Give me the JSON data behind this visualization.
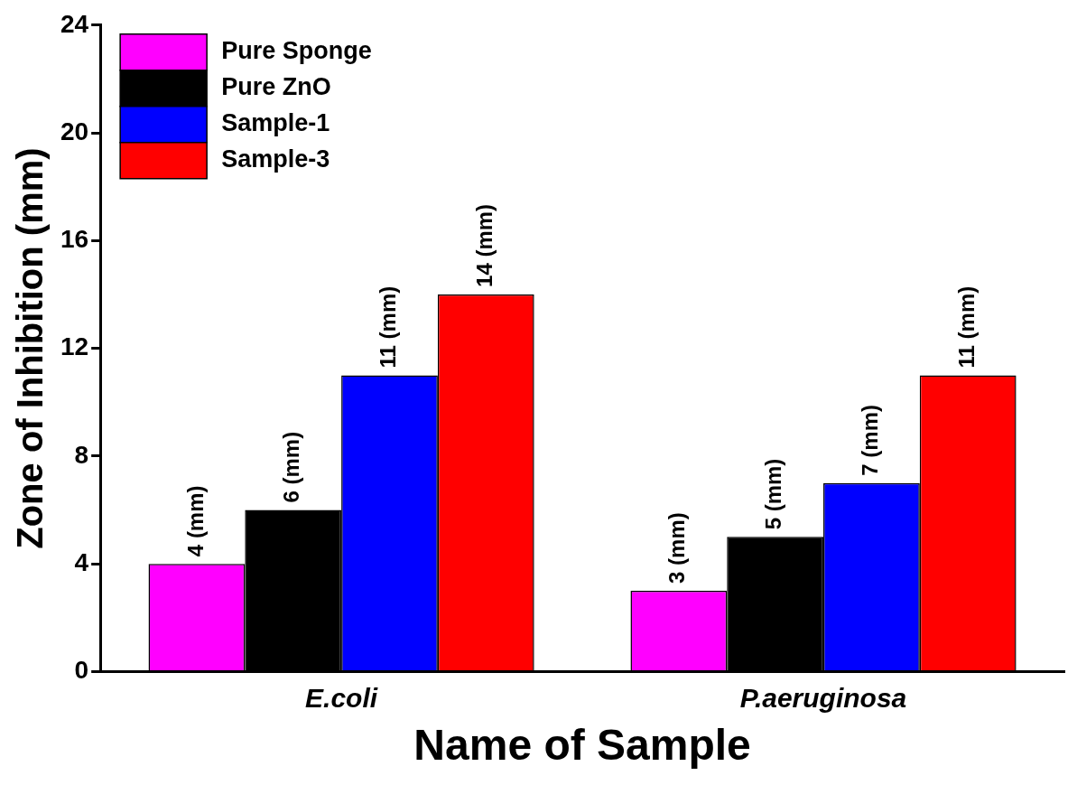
{
  "chart_data": {
    "type": "bar",
    "xlabel": "Name of Sample",
    "ylabel": "Zone of Inhibition (mm)",
    "categories": [
      "E.coli",
      "P.aeruginosa"
    ],
    "ylim": [
      0,
      24
    ],
    "yticks": [
      0,
      4,
      8,
      12,
      16,
      20,
      24
    ],
    "legend": "top left",
    "series": [
      {
        "name": "Pure Sponge",
        "color": "#ff00ff",
        "values": [
          4,
          3
        ],
        "value_labels": [
          "4 (mm)",
          "3 (mm)"
        ]
      },
      {
        "name": "Pure ZnO",
        "color": "#000000",
        "values": [
          6,
          5
        ],
        "value_labels": [
          "6 (mm)",
          "5 (mm)"
        ]
      },
      {
        "name": "Sample-1",
        "color": "#0000ff",
        "values": [
          11,
          7
        ],
        "value_labels": [
          "11 (mm)",
          "7 (mm)"
        ]
      },
      {
        "name": "Sample-3",
        "color": "#ff0000",
        "values": [
          14,
          11
        ],
        "value_labels": [
          "14 (mm)",
          "11 (mm)"
        ]
      }
    ]
  }
}
